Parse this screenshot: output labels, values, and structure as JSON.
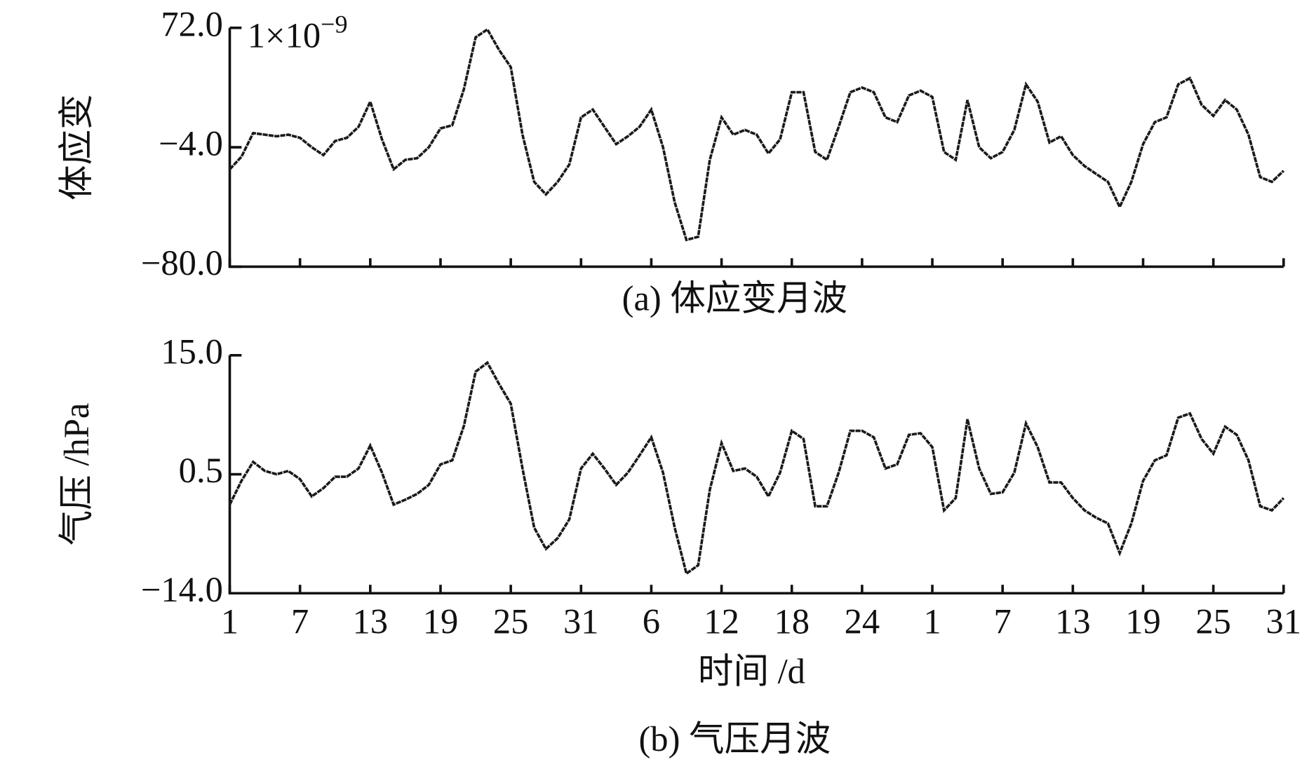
{
  "chart_data": [
    {
      "type": "line",
      "ylabel": "体应变",
      "caption": "(a) 体应变月波",
      "y_multiplier": {
        "base": "1×10",
        "exponent": "−9"
      },
      "color": "#1a1a1a",
      "ylim": [
        -80,
        72
      ],
      "yticks": [
        {
          "value": -80,
          "label": "−80.0"
        },
        {
          "value": -4,
          "label": "−4.0"
        },
        {
          "value": 72,
          "label": "72.0"
        }
      ],
      "x": [
        0,
        1,
        2,
        3,
        4,
        5,
        6,
        7,
        8,
        9,
        10,
        11,
        12,
        13,
        14,
        15,
        16,
        17,
        18,
        19,
        20,
        21,
        22,
        23,
        24,
        25,
        26,
        27,
        28,
        29,
        30,
        31,
        32,
        33,
        34,
        35,
        36,
        37,
        38,
        39,
        40,
        41,
        42,
        43,
        44,
        45,
        46,
        47,
        48,
        49,
        50,
        51,
        52,
        53,
        54,
        55,
        56,
        57,
        58,
        59,
        60,
        61,
        62,
        63,
        64,
        65,
        66,
        67,
        68,
        69,
        70,
        71,
        72,
        73,
        74,
        75,
        76,
        77,
        78,
        79,
        80,
        81,
        82,
        83,
        84,
        85,
        86,
        87,
        88,
        89,
        90
      ],
      "values": [
        -18,
        -10,
        5,
        4,
        3,
        4,
        2,
        -4,
        -9,
        0,
        2,
        9,
        25,
        1,
        -18,
        -12,
        -11,
        -4,
        8,
        10,
        33,
        66,
        71,
        58,
        47,
        4,
        -26,
        -34,
        -26,
        -15,
        15,
        20,
        9,
        -2,
        3,
        9,
        20,
        -4,
        -39,
        -63,
        -61,
        -12,
        15,
        4,
        7,
        4,
        -8,
        1,
        31,
        31,
        -7,
        -12,
        9,
        31,
        34,
        31,
        15,
        12,
        29,
        32,
        28,
        -7,
        -12,
        26,
        -4,
        -11,
        -7,
        7,
        36,
        25,
        -1,
        3,
        -9,
        -16,
        -21,
        -26,
        -42,
        -26,
        -2,
        12,
        15,
        36,
        40,
        23,
        16,
        26,
        20,
        4,
        -23,
        -26,
        -19
      ],
      "xlim": [
        0,
        90
      ]
    },
    {
      "type": "line",
      "ylabel": "气压 /hPa",
      "xlabel": "时间 /d",
      "caption": "(b) 气压月波",
      "color": "#1a1a1a",
      "ylim": [
        -14,
        15
      ],
      "yticks": [
        {
          "value": -14,
          "label": "−14.0"
        },
        0.5,
        {
          "value": 15,
          "label": "15.0"
        }
      ],
      "x": [
        0,
        1,
        2,
        3,
        4,
        5,
        6,
        7,
        8,
        9,
        10,
        11,
        12,
        13,
        14,
        15,
        16,
        17,
        18,
        19,
        20,
        21,
        22,
        23,
        24,
        25,
        26,
        27,
        28,
        29,
        30,
        31,
        32,
        33,
        34,
        35,
        36,
        37,
        38,
        39,
        40,
        41,
        42,
        43,
        44,
        45,
        46,
        47,
        48,
        49,
        50,
        51,
        52,
        53,
        54,
        55,
        56,
        57,
        58,
        59,
        60,
        61,
        62,
        63,
        64,
        65,
        66,
        67,
        68,
        69,
        70,
        71,
        72,
        73,
        74,
        75,
        76,
        77,
        78,
        79,
        80,
        81,
        82,
        83,
        84,
        85,
        86,
        87,
        88,
        89,
        90
      ],
      "values": [
        -3.2,
        -0.3,
        2,
        0.9,
        0.5,
        0.9,
        -0.1,
        -2.2,
        -1.2,
        0.2,
        0.2,
        1.2,
        4,
        0.7,
        -3.2,
        -2.6,
        -1.9,
        -0.8,
        1.7,
        2.2,
        6.4,
        13,
        14.1,
        11.5,
        9.1,
        1.2,
        -6,
        -8.6,
        -7.3,
        -5,
        1.2,
        3,
        1.2,
        -0.8,
        0.7,
        2.8,
        5,
        0.7,
        -6,
        -11.6,
        -10.6,
        -1.4,
        4.3,
        0.9,
        1.2,
        0.2,
        -2.2,
        0.7,
        5.8,
        4.8,
        -3.4,
        -3.4,
        0.7,
        5.8,
        5.8,
        5,
        1.2,
        1.7,
        5.3,
        5.5,
        3.8,
        -3.9,
        -2.4,
        7.2,
        1.2,
        -1.9,
        -1.7,
        0.7,
        6.7,
        3.8,
        -0.5,
        -0.5,
        -2.4,
        -3.9,
        -4.8,
        -5.5,
        -9.1,
        -5.5,
        -0.3,
        2.2,
        2.8,
        7.4,
        7.9,
        4.8,
        3,
        6.3,
        5.3,
        2.2,
        -3.4,
        -3.9,
        -2.4
      ],
      "xlim": [
        0,
        90
      ],
      "xticks": [
        {
          "value": 0,
          "label": "1"
        },
        {
          "value": 6,
          "label": "7"
        },
        {
          "value": 12,
          "label": "13"
        },
        {
          "value": 18,
          "label": "19"
        },
        {
          "value": 24,
          "label": "25"
        },
        {
          "value": 30,
          "label": "31"
        },
        {
          "value": 36,
          "label": "6"
        },
        {
          "value": 42,
          "label": "12"
        },
        {
          "value": 48,
          "label": "18"
        },
        {
          "value": 54,
          "label": "24"
        },
        {
          "value": 60,
          "label": "1"
        },
        {
          "value": 66,
          "label": "7"
        },
        {
          "value": 72,
          "label": "13"
        },
        {
          "value": 78,
          "label": "19"
        },
        {
          "value": 84,
          "label": "25"
        },
        {
          "value": 90,
          "label": "31"
        }
      ]
    }
  ]
}
